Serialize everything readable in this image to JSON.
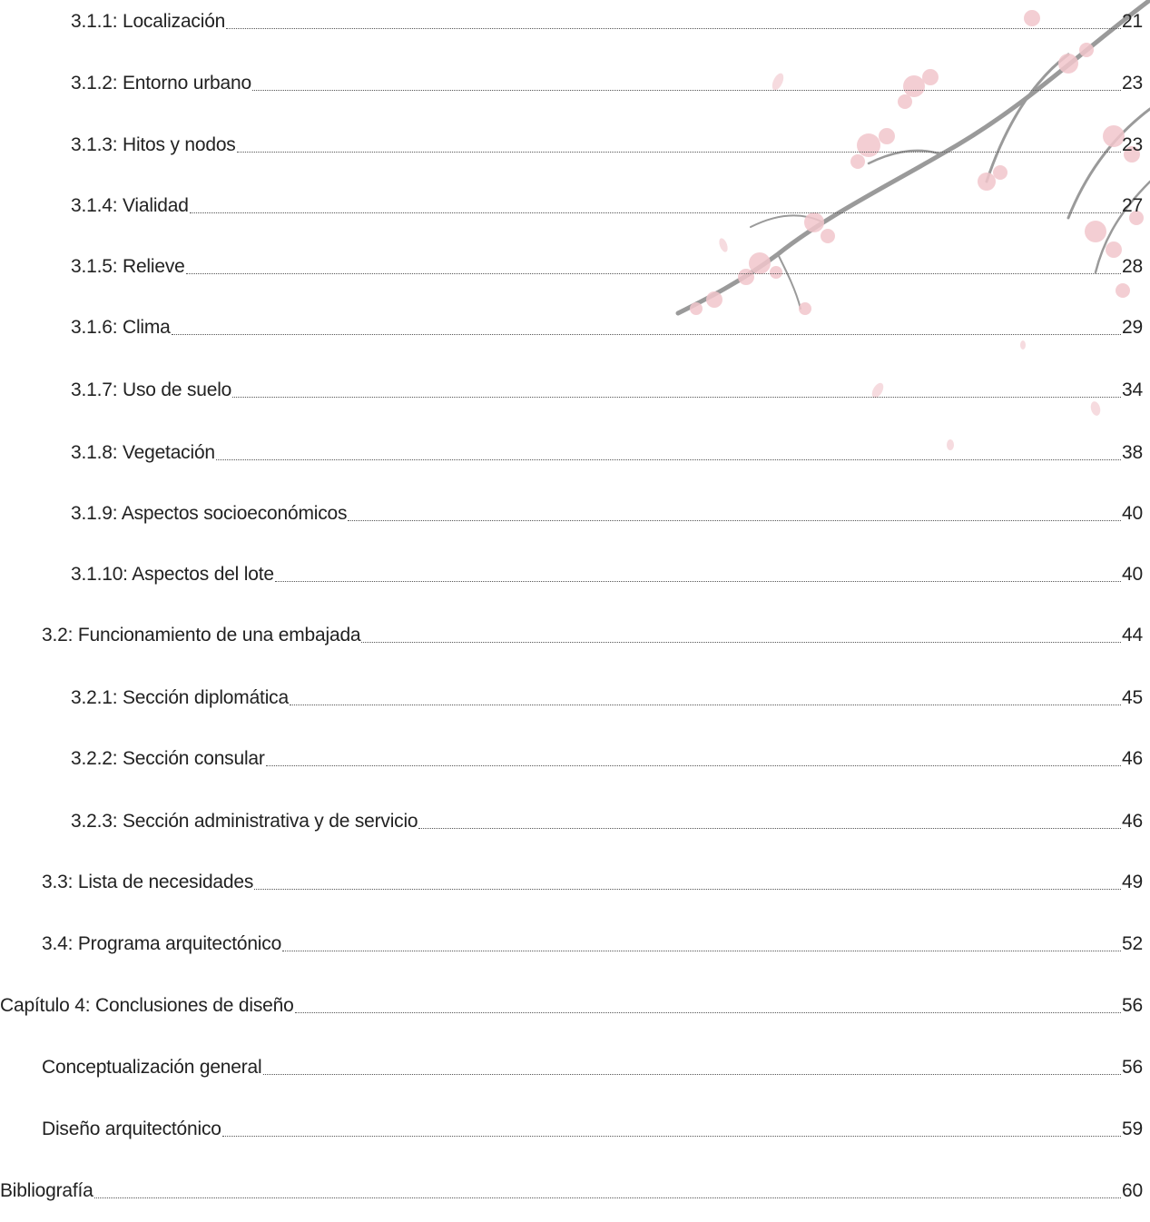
{
  "toc": {
    "entries": [
      {
        "label": "3.1.1: Localización",
        "page": "21"
      },
      {
        "label": "3.1.2: Entorno urbano",
        "page": "23"
      },
      {
        "label": "3.1.3: Hitos y nodos",
        "page": "23"
      },
      {
        "label": "3.1.4: Vialidad",
        "page": "27"
      },
      {
        "label": "3.1.5: Relieve",
        "page": "28"
      },
      {
        "label": "3.1.6: Clima",
        "page": "29"
      },
      {
        "label": "3.1.7: Uso de suelo",
        "page": "34"
      },
      {
        "label": "3.1.8: Vegetación",
        "page": "38"
      },
      {
        "label": "3.1.9: Aspectos socioeconómicos",
        "page": "40"
      },
      {
        "label": "3.1.10: Aspectos del lote",
        "page": "40"
      },
      {
        "label": "3.2: Funcionamiento de una embajada",
        "page": "44"
      },
      {
        "label": "3.2.1: Sección diplomática",
        "page": "45"
      },
      {
        "label": "3.2.2: Sección consular",
        "page": "46"
      },
      {
        "label": "3.2.3: Sección administrativa y de servicio",
        "page": "46"
      },
      {
        "label": "3.3: Lista de necesidades",
        "page": "49"
      },
      {
        "label": "3.4: Programa arquitectónico",
        "page": "52"
      },
      {
        "label": "Capítulo 4: Conclusiones de diseño",
        "page": "56"
      },
      {
        "label": "Conceptualización general",
        "page": "56"
      },
      {
        "label": "Diseño arquitectónico",
        "page": "59"
      },
      {
        "label": "Bibliografía",
        "page": "60"
      }
    ]
  },
  "decoration": {
    "icon": "cherry-blossom-branch",
    "petal_color": "#f2c6cc",
    "branch_color": "#8c8c8c"
  }
}
